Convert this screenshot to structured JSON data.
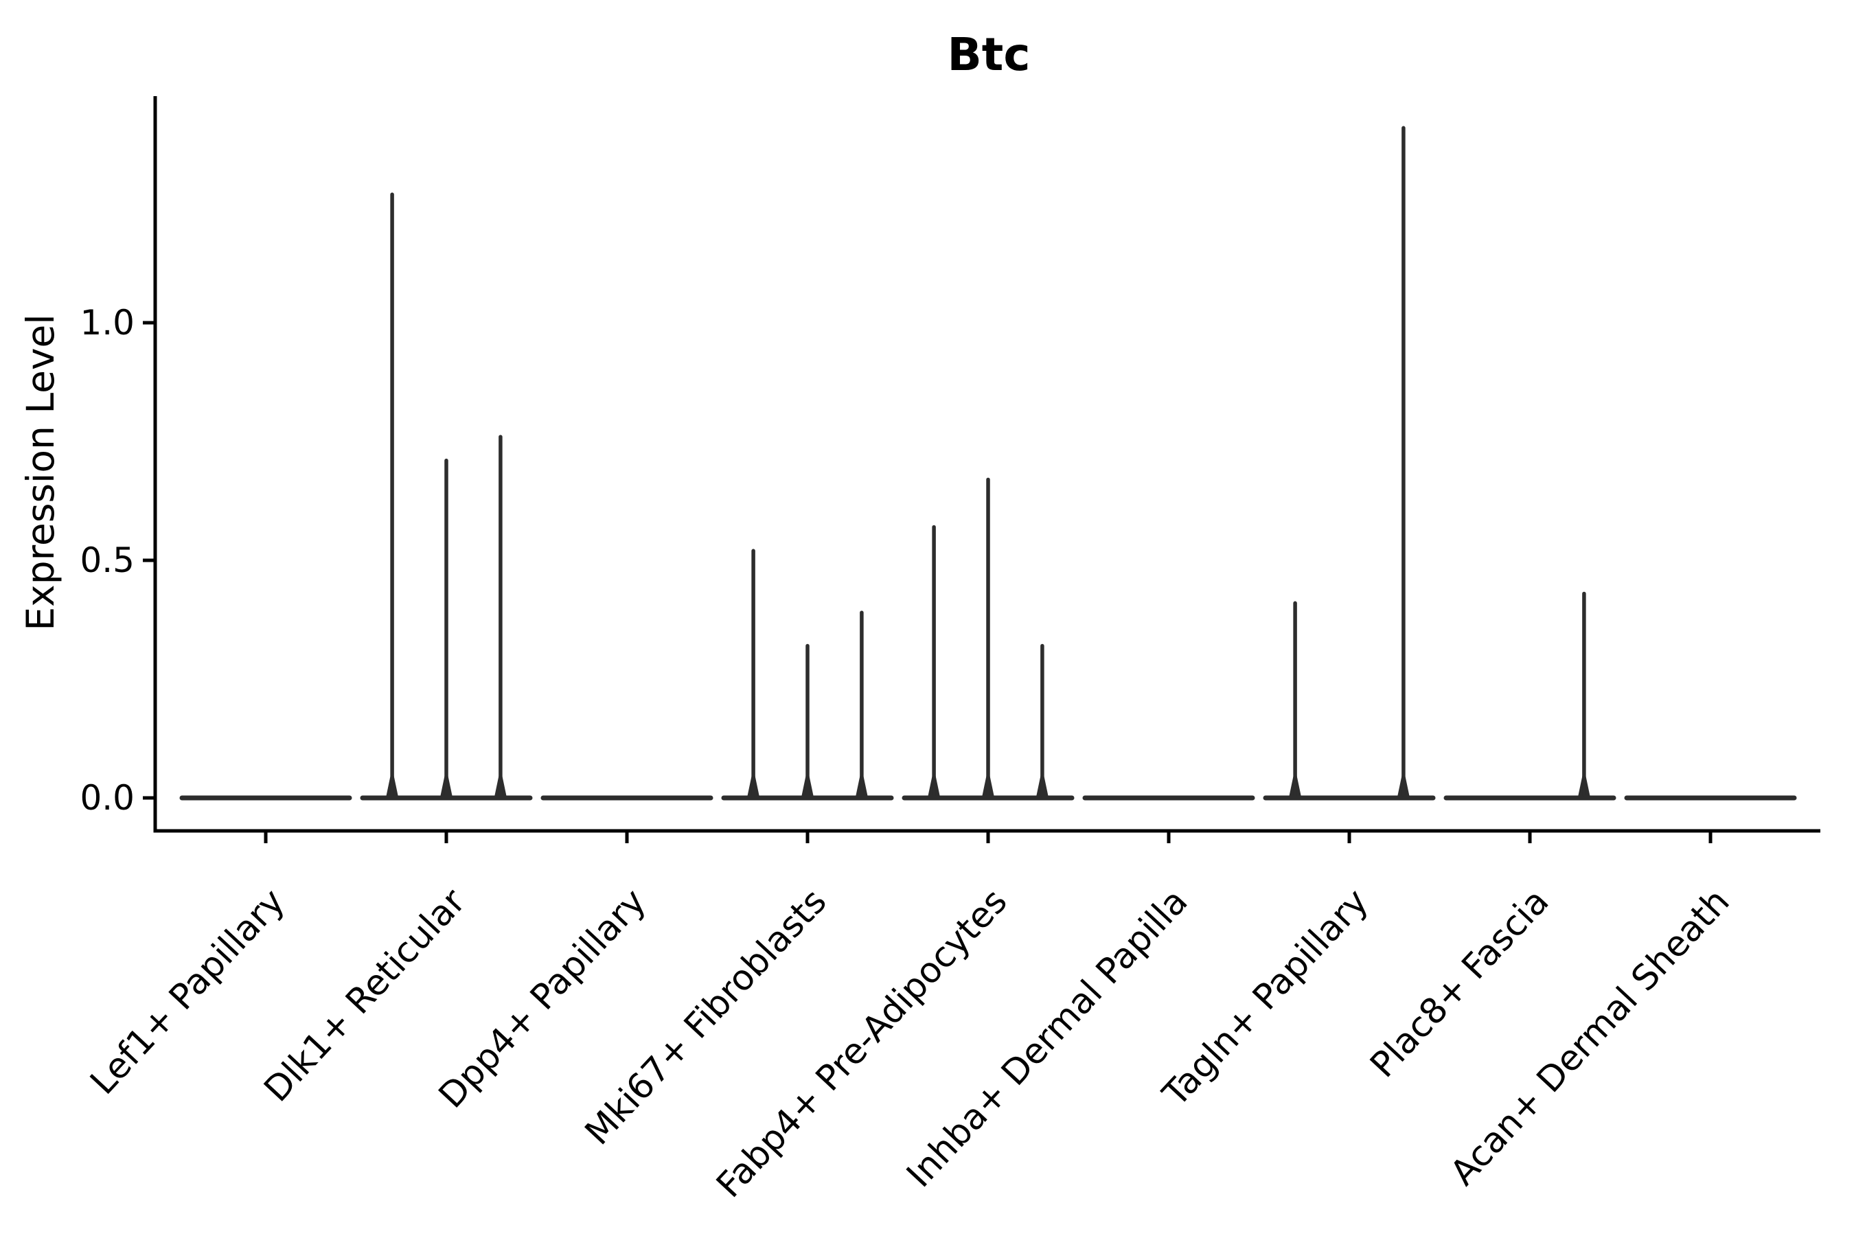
{
  "figure": {
    "title": "Btc"
  },
  "chart_data": {
    "type": "violin",
    "title": "Btc",
    "xlabel": "",
    "ylabel": "Expression Level",
    "categories": [
      "Lef1+ Papillary",
      "Dlk1+ Reticular",
      "Dpp4+ Papillary",
      "Mki67+ Fibroblasts",
      "Fabp4+ Pre-Adipocytes",
      "Inhba+ Dermal Papilla",
      "Tagln+ Papillary",
      "Plac8+ Fascia",
      "Acan+ Dermal Sheath"
    ],
    "ylim": [
      -0.07,
      1.48
    ],
    "yticks": [
      {
        "value": 0.0,
        "label": "0.0"
      },
      {
        "value": 0.5,
        "label": "0.5"
      },
      {
        "value": 1.0,
        "label": "1.0"
      }
    ],
    "grid": false,
    "legend": null,
    "violins": [
      {
        "category": "Lef1+ Papillary",
        "baseline": 0.0,
        "spikes": []
      },
      {
        "category": "Dlk1+ Reticular",
        "baseline": 0.0,
        "spikes": [
          {
            "pos": -0.3,
            "peak": 1.27
          },
          {
            "pos": 0.0,
            "peak": 0.71
          },
          {
            "pos": 0.3,
            "peak": 0.76
          }
        ]
      },
      {
        "category": "Dpp4+ Papillary",
        "baseline": 0.0,
        "spikes": []
      },
      {
        "category": "Mki67+ Fibroblasts",
        "baseline": 0.0,
        "spikes": [
          {
            "pos": -0.3,
            "peak": 0.52
          },
          {
            "pos": 0.0,
            "peak": 0.32
          },
          {
            "pos": 0.3,
            "peak": 0.39
          }
        ]
      },
      {
        "category": "Fabp4+ Pre-Adipocytes",
        "baseline": 0.0,
        "spikes": [
          {
            "pos": -0.3,
            "peak": 0.57
          },
          {
            "pos": 0.0,
            "peak": 0.67
          },
          {
            "pos": 0.3,
            "peak": 0.32
          }
        ]
      },
      {
        "category": "Inhba+ Dermal Papilla",
        "baseline": 0.0,
        "spikes": []
      },
      {
        "category": "Tagln+ Papillary",
        "baseline": 0.0,
        "spikes": [
          {
            "pos": -0.3,
            "peak": 0.41
          },
          {
            "pos": 0.3,
            "peak": 1.41
          }
        ]
      },
      {
        "category": "Plac8+ Fascia",
        "baseline": 0.0,
        "spikes": [
          {
            "pos": 0.3,
            "peak": 0.43
          }
        ]
      },
      {
        "category": "Acan+ Dermal Sheath",
        "baseline": 0.0,
        "spikes": []
      }
    ],
    "colors": {
      "violin_stroke": "#2d2d2d",
      "axis": "#000000",
      "text": "#000000",
      "background": "#ffffff"
    }
  }
}
